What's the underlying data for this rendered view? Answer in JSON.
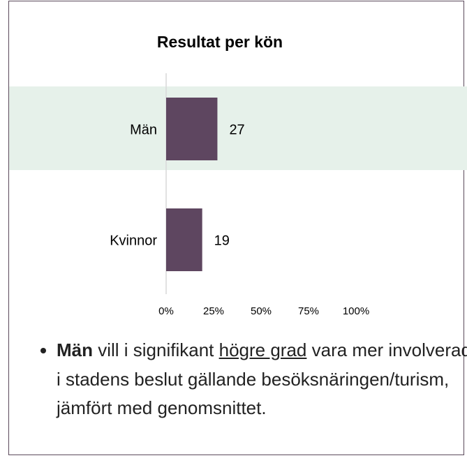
{
  "chart_data": {
    "type": "bar",
    "orientation": "horizontal",
    "title": "Resultat per kön",
    "categories": [
      "Män",
      "Kvinnor"
    ],
    "values": [
      27,
      19
    ],
    "color": "#5e4660",
    "xlim": [
      0,
      100
    ],
    "xticks": [
      {
        "value": 0,
        "label": "0%"
      },
      {
        "value": 25,
        "label": "25%"
      },
      {
        "value": 50,
        "label": "50%"
      },
      {
        "value": 75,
        "label": "75%"
      },
      {
        "value": 100,
        "label": "100%"
      }
    ]
  },
  "bullets": [
    {
      "parts": [
        {
          "text": "Män",
          "style": "bold"
        },
        {
          "text": " vill i signifikant ",
          "style": "normal"
        },
        {
          "text": "högre grad",
          "style": "underline"
        },
        {
          "text": " vara mer involverade i stadens beslut gällande besöksnäringen/turism, jämfört med genomsnittet.",
          "style": "normal"
        }
      ]
    }
  ]
}
